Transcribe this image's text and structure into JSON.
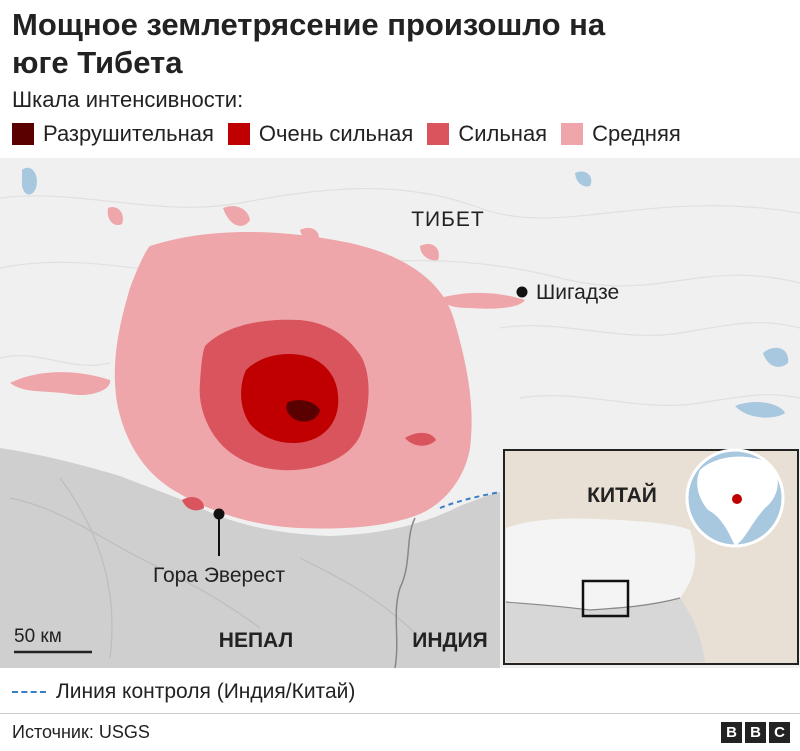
{
  "title": "Мощное землетрясение произошло на юге Тибета",
  "legend": {
    "heading": "Шкала интенсивности:",
    "items": [
      {
        "label": "Разрушительная",
        "color": "#5a0000"
      },
      {
        "label": "Очень сильная",
        "color": "#c00000"
      },
      {
        "label": "Сильная",
        "color": "#d9545c"
      },
      {
        "label": "Средняя",
        "color": "#eea6aa"
      }
    ]
  },
  "map": {
    "region_labels": {
      "tibet": "ТИБЕТ",
      "nepal": "НЕПАЛ",
      "india": "ИНДИЯ"
    },
    "places": {
      "shigatse": "Шигадзе",
      "everest": "Гора Эверест"
    },
    "scale_bar": "50 км",
    "inset": {
      "china_label": "КИТАЙ"
    },
    "colors": {
      "land_tibet": "#f0f0f0",
      "land_nepal": "#cfcfcf",
      "water": "#a8c8e0",
      "china": "#e8e0d4"
    }
  },
  "line_of_control": "Линия контроля (Индия/Китай)",
  "source": "Источник: USGS",
  "logo": [
    "B",
    "B",
    "C"
  ]
}
